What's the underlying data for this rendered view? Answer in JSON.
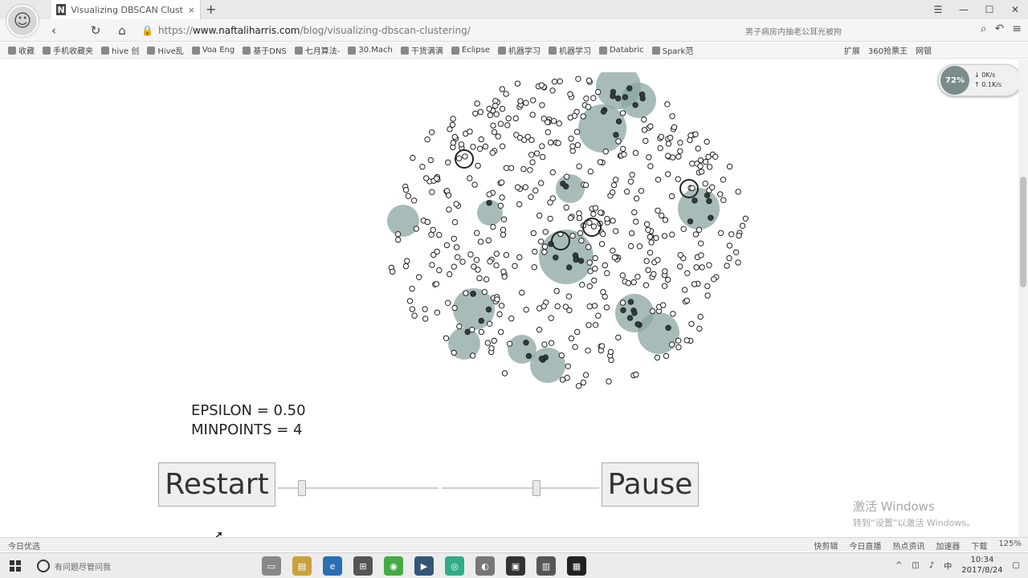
{
  "browser": {
    "tab_title": "Visualizing DBSCAN Clusterir",
    "tab_favicon": "N",
    "new_tab": "+",
    "url_scheme": "https://",
    "url_host": "www.naftaliharris.com",
    "url_path": "/blog/visualizing-dbscan-clustering/",
    "news_text": "男子病房内抽老公耳光被拘",
    "bookmarks": [
      "收藏",
      "手机收藏夹",
      "hive 创",
      "Hive乱",
      "Voa Eng",
      "基于DNS",
      "七月算法-",
      "30.Mach",
      "干货满满",
      "Eclipse",
      "机器学习",
      "机器学习",
      "Databric",
      "Spark范"
    ],
    "bookmarks_right": [
      "扩展",
      "360抢票王",
      "网银"
    ]
  },
  "speed_widget": {
    "label": "72%",
    "down": "0K/s",
    "up": "0.1K/s"
  },
  "page": {
    "epsilon_label": "EPSILON = 0.50",
    "minpoints_label": "MINPOINTS = 4",
    "restart_label": "Restart",
    "pause_label": "Pause",
    "epsilon_slider": 0.15,
    "minpoints_slider": 0.6
  },
  "watermark": {
    "line1": "激活 Windows",
    "line2": "转到“设置”以激活 Windows。"
  },
  "statusbar": {
    "left": "今日优选",
    "items": [
      "快剪辑",
      "今日直播",
      "热点资讯",
      "加速器",
      "下载",
      "125%"
    ]
  },
  "taskbar": {
    "search_placeholder": "有问题尽管问我",
    "tray_ime": "中",
    "clock_time": "10:34",
    "clock_date": "2017/8/24"
  },
  "colors": {
    "cluster_dark": "#2e3f3f",
    "cluster_halo": "#8aa5a0",
    "point_stroke": "#222222"
  }
}
